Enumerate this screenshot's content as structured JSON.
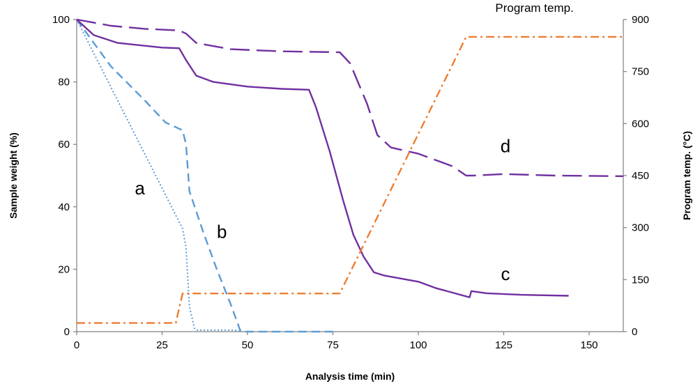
{
  "chart_data": {
    "type": "line",
    "xlabel": "Analysis time (min)",
    "ylabel": "Sample weight (%)",
    "y2label": "Program temp. (°C)",
    "xlim": [
      0,
      160
    ],
    "ylim": [
      0,
      100
    ],
    "y2lim": [
      0,
      900
    ],
    "xticks": [
      0,
      25,
      50,
      75,
      100,
      125,
      150
    ],
    "yticks": [
      0,
      20,
      40,
      60,
      80,
      100
    ],
    "y2ticks": [
      0,
      150,
      300,
      450,
      600,
      750,
      900
    ],
    "grid": false,
    "legend": "none",
    "series": [
      {
        "name": "a",
        "axis": "left",
        "color": "#5b9bd5",
        "dash": "dotted",
        "points": [
          [
            0,
            100
          ],
          [
            31,
            33
          ],
          [
            32,
            27
          ],
          [
            33,
            8
          ],
          [
            34.5,
            1
          ],
          [
            35,
            0.5
          ],
          [
            46,
            0.5
          ],
          [
            48,
            0
          ]
        ]
      },
      {
        "name": "b",
        "axis": "left",
        "color": "#5b9bd5",
        "dash": "dashed",
        "points": [
          [
            0,
            100
          ],
          [
            10,
            85
          ],
          [
            20,
            74
          ],
          [
            26,
            67
          ],
          [
            31,
            64.5
          ],
          [
            32,
            60
          ],
          [
            33,
            45
          ],
          [
            37,
            32
          ],
          [
            41,
            20
          ],
          [
            45,
            9
          ],
          [
            48,
            0
          ],
          [
            75,
            0
          ]
        ]
      },
      {
        "name": "c",
        "axis": "left",
        "color": "#7030a0",
        "dash": "solid",
        "points": [
          [
            0,
            100
          ],
          [
            5,
            95
          ],
          [
            12,
            92.5
          ],
          [
            25,
            91
          ],
          [
            30,
            90.8
          ],
          [
            32,
            87
          ],
          [
            35,
            82
          ],
          [
            40,
            80
          ],
          [
            50,
            78.5
          ],
          [
            60,
            77.8
          ],
          [
            68,
            77.5
          ],
          [
            70,
            72
          ],
          [
            74,
            58
          ],
          [
            78,
            42
          ],
          [
            81,
            31
          ],
          [
            84,
            24
          ],
          [
            87,
            19
          ],
          [
            90,
            18
          ],
          [
            100,
            16
          ],
          [
            105,
            14
          ],
          [
            110,
            12.5
          ],
          [
            115,
            11
          ],
          [
            115.5,
            13
          ],
          [
            120,
            12.3
          ],
          [
            130,
            11.8
          ],
          [
            144,
            11.5
          ]
        ]
      },
      {
        "name": "d",
        "axis": "left",
        "color": "#7030a0",
        "dash": "longdash",
        "points": [
          [
            0,
            100
          ],
          [
            10,
            98
          ],
          [
            20,
            97
          ],
          [
            30,
            96.5
          ],
          [
            32,
            95.5
          ],
          [
            35,
            92.5
          ],
          [
            45,
            90.5
          ],
          [
            60,
            89.8
          ],
          [
            77,
            89.5
          ],
          [
            80,
            86
          ],
          [
            85,
            73
          ],
          [
            88,
            63
          ],
          [
            92,
            59
          ],
          [
            100,
            57
          ],
          [
            110,
            53
          ],
          [
            114,
            50
          ],
          [
            116,
            50
          ],
          [
            125,
            50.5
          ],
          [
            140,
            50
          ],
          [
            160,
            49.8
          ]
        ]
      },
      {
        "name": "Program temp.",
        "axis": "right",
        "color": "#ed7d31",
        "dash": "dashdot",
        "points": [
          [
            0,
            25
          ],
          [
            29,
            25
          ],
          [
            31,
            110
          ],
          [
            77,
            110
          ],
          [
            114,
            850
          ],
          [
            160,
            850
          ]
        ]
      }
    ],
    "annotations": [
      {
        "text": "a",
        "x": 18.5,
        "y": 44
      },
      {
        "text": "b",
        "x": 42.5,
        "y": 30
      },
      {
        "text": "c",
        "x": 125.5,
        "y": 16.5
      },
      {
        "text": "d",
        "x": 125.5,
        "y": 57.5
      },
      {
        "text": "Program temp.",
        "x": 134,
        "y": 102.5
      }
    ]
  }
}
